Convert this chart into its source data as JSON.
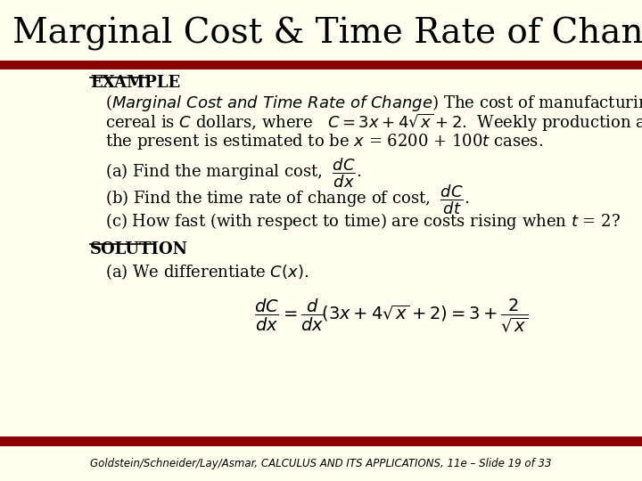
{
  "title": "Marginal Cost & Time Rate of Change",
  "bg_color": "#FFFFF0",
  "bar_color": "#8B0000",
  "title_fontsize": 28,
  "body_fontsize": 13,
  "footer_text": "Goldstein/Schneider/Lay/Asmar, CALCULUS AND ITS APPLICATIONS, 11e – Slide 19 of 33"
}
